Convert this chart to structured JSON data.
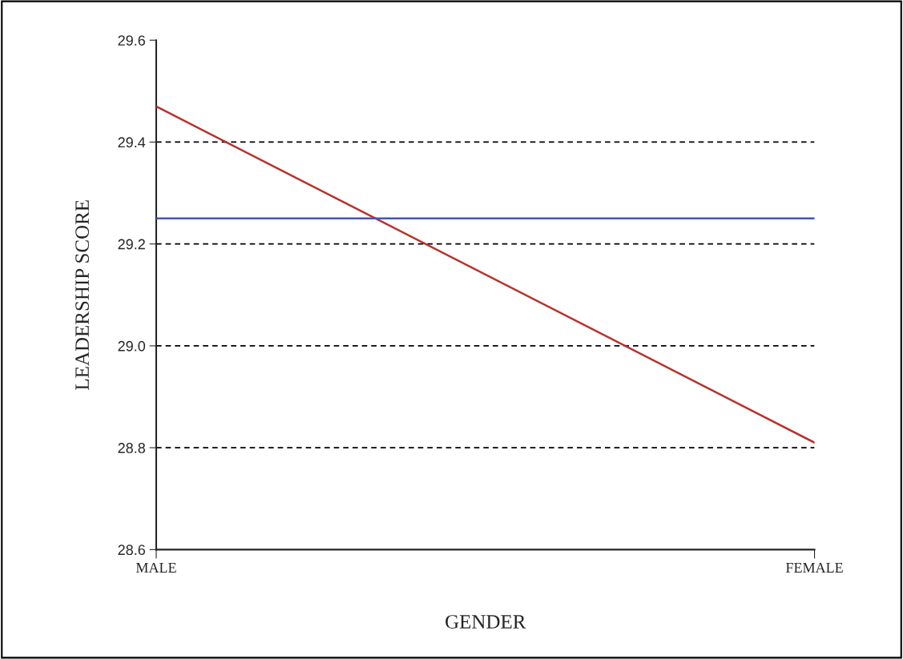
{
  "chart_data": {
    "type": "line",
    "xlabel": "GENDER",
    "ylabel": "LEADERSHIP SCORE",
    "categories": [
      "MALE",
      "FEMALE"
    ],
    "series": [
      {
        "color": "#b8312a",
        "values": [
          29.47,
          28.81
        ]
      },
      {
        "color": "#4a55a8",
        "values": [
          29.25,
          29.25
        ]
      }
    ],
    "ylim": [
      28.6,
      29.6
    ],
    "yticks": [
      28.6,
      28.8,
      {
        "value": 29.0,
        "label": "29.0"
      },
      29.2,
      29.4,
      29.6
    ],
    "ref_lines": [
      {
        "axis": "y",
        "value": 28.8,
        "color": "#000000",
        "line_style": "dashed"
      },
      {
        "axis": "y",
        "value": 29.0,
        "color": "#000000",
        "line_style": "dashed"
      },
      {
        "axis": "y",
        "value": 29.2,
        "color": "#000000",
        "line_style": "dashed"
      },
      {
        "axis": "y",
        "value": 29.4,
        "color": "#000000",
        "line_style": "dashed"
      }
    ],
    "marker": "none",
    "line_style": "solid",
    "legend": false
  }
}
